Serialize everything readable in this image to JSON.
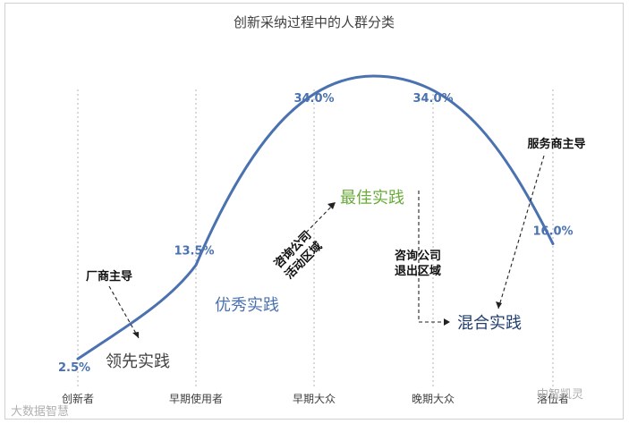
{
  "chart_data": {
    "type": "line",
    "title": "创新采纳过程中的人群分类",
    "categories": [
      "创新者",
      "早期使用者",
      "早期大众",
      "晚期大众",
      "落伍者"
    ],
    "values": [
      2.5,
      13.5,
      34.0,
      34.0,
      16.0
    ],
    "value_labels": [
      "2.5%",
      "13.5%",
      "34.0%",
      "34.0%",
      "16.0%"
    ],
    "grid": false,
    "annotations": {
      "vendor_led": "厂商主导",
      "leading_practice": "领先实践",
      "excellent_practice": "优秀实践",
      "consulting_active_line1": "咨询公司",
      "consulting_active_line2": "活动区域",
      "best_practice": "最佳实践",
      "consulting_exit_line1": "咨询公司",
      "consulting_exit_line2": "退出区域",
      "mixed_practice": "混合实践",
      "service_led": "服务商主导"
    },
    "colors": {
      "curve": "#4a72b0",
      "leading_practice": "#404040",
      "excellent_practice": "#4a72b0",
      "best_practice": "#6aab3c",
      "mixed_practice": "#1f3d6e"
    }
  },
  "watermark": {
    "left": "大数据智慧",
    "right": "中智凯灵"
  }
}
